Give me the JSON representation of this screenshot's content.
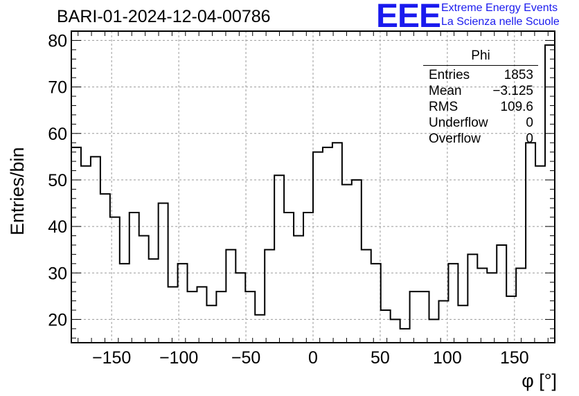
{
  "chart_data": {
    "type": "histogram",
    "title": "BARI-01-2024-12-04-00786",
    "xlabel": "φ [°]",
    "ylabel": "Entries/bin",
    "xlim": [
      -180,
      180
    ],
    "ylim": [
      15,
      82
    ],
    "bin_width": 7.2,
    "xticks": [
      -150,
      -100,
      -50,
      0,
      50,
      100,
      150
    ],
    "xtick_labels": [
      "−150",
      "−100",
      "−50",
      "0",
      "50",
      "100",
      "150"
    ],
    "yticks": [
      20,
      30,
      40,
      50,
      60,
      70,
      80
    ],
    "grid": true,
    "values": [
      57,
      53,
      55,
      47,
      42,
      32,
      43,
      38,
      33,
      45,
      27,
      32,
      26,
      27,
      23,
      26,
      35,
      30,
      26,
      21,
      35,
      51,
      43,
      38,
      43,
      56,
      57,
      58,
      49,
      50,
      35,
      32,
      22,
      20,
      18,
      26,
      26,
      20,
      24,
      32,
      23,
      34,
      31,
      30,
      36,
      25,
      31,
      58,
      53,
      79
    ]
  },
  "stats_box": {
    "name": "Phi",
    "rows": [
      {
        "label": "Entries",
        "value": "1853"
      },
      {
        "label": "Mean",
        "value": "−3.125"
      },
      {
        "label": "RMS",
        "value": "109.6"
      },
      {
        "label": "Underflow",
        "value": "0"
      },
      {
        "label": "Overflow",
        "value": "0"
      }
    ]
  },
  "logo": {
    "mark": "EEE",
    "line1": "Extreme Energy Events",
    "line2": "La Scienza nelle Scuole",
    "color": "#1a1aee"
  }
}
